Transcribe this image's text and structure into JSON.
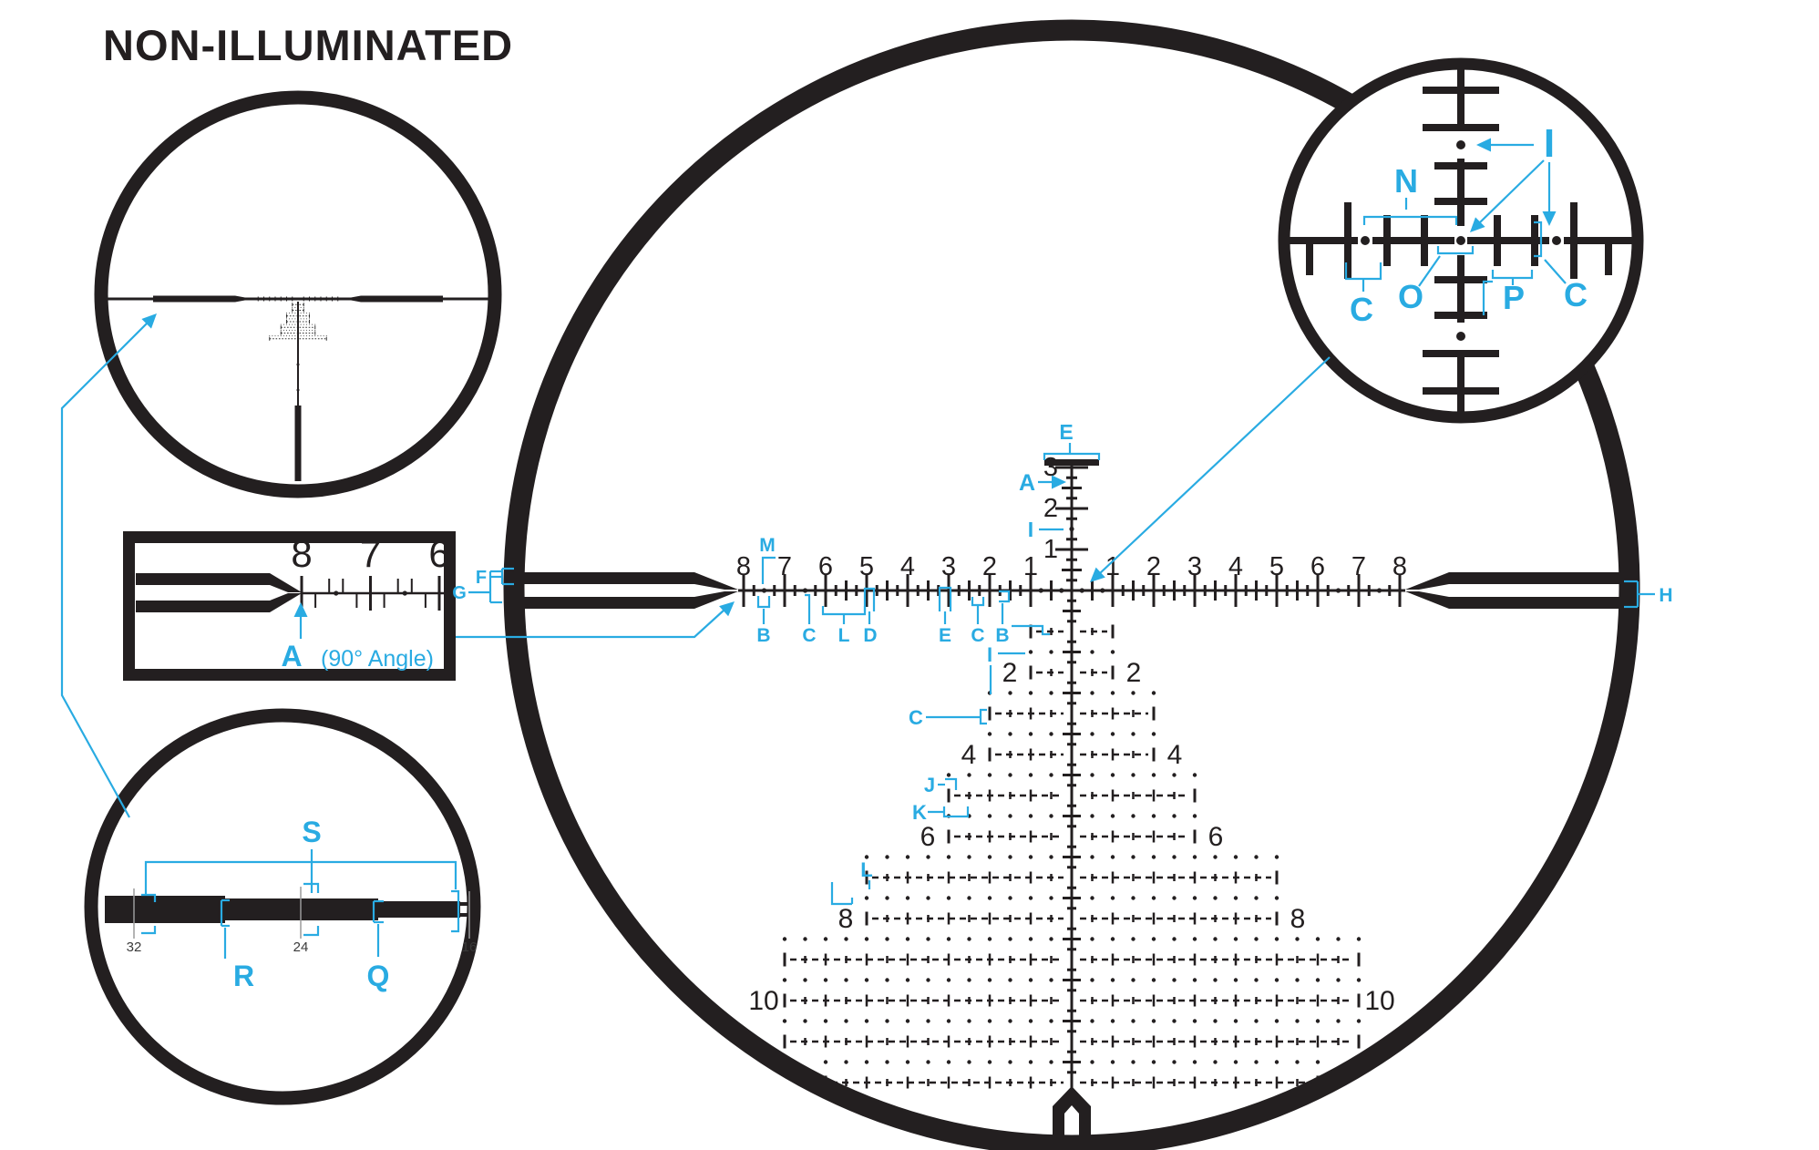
{
  "title": "NON-ILLUMINATED",
  "colors": {
    "ink": "#231F20",
    "accent": "#29ABE2",
    "background": "#FFFFFF",
    "tick_gray": "#9A9A9A"
  },
  "main_reticle": {
    "numbers_left": [
      "8",
      "7",
      "6",
      "5",
      "4",
      "3",
      "2",
      "1"
    ],
    "numbers_right": [
      "1",
      "2",
      "3",
      "4",
      "5",
      "6",
      "7",
      "8"
    ],
    "numbers_vertical": [
      "3",
      "2",
      "1"
    ],
    "tree_numbers_left": [
      "2",
      "4",
      "6",
      "8",
      "10"
    ],
    "tree_numbers_right": [
      "2",
      "4",
      "6",
      "8",
      "10"
    ],
    "callouts": [
      {
        "id": "M_tick",
        "label": "M"
      },
      {
        "id": "B_bar",
        "label": "B"
      },
      {
        "id": "C_bar",
        "label": "C"
      },
      {
        "id": "L_bar",
        "label": "L"
      },
      {
        "id": "D_bar",
        "label": "D"
      },
      {
        "id": "E_bar",
        "label": "E"
      },
      {
        "id": "C_line",
        "label": "C"
      },
      {
        "id": "B_line",
        "label": "B"
      },
      {
        "id": "E_cap",
        "label": "E"
      },
      {
        "id": "A_axis",
        "label": "A"
      },
      {
        "id": "I_axis",
        "label": "I"
      },
      {
        "id": "C_row3",
        "label": "C"
      },
      {
        "id": "I_dots",
        "label": "I"
      },
      {
        "id": "J_dot",
        "label": "J"
      },
      {
        "id": "K_dots",
        "label": "K"
      },
      {
        "id": "L_row7",
        "label": "L"
      },
      {
        "id": "F_inset",
        "label": "F"
      },
      {
        "id": "G_inset",
        "label": "G"
      },
      {
        "id": "H_edge",
        "label": "H"
      }
    ]
  },
  "detail_top_right": {
    "callouts": [
      {
        "id": "I_det",
        "label": "I"
      },
      {
        "id": "N_det",
        "label": "N"
      },
      {
        "id": "C_det_l",
        "label": "C"
      },
      {
        "id": "O_det",
        "label": "O"
      },
      {
        "id": "P_det",
        "label": "P"
      },
      {
        "id": "C_det_r",
        "label": "C"
      }
    ]
  },
  "inset_ruler": {
    "numbers": [
      "8",
      "7",
      "6"
    ],
    "pointer_label": "A",
    "pointer_note": "(90° Angle)"
  },
  "detail_bottom_left": {
    "numbers": [
      "32",
      "24",
      "16"
    ],
    "span_label": "S",
    "step_labels": [
      "R",
      "Q"
    ]
  }
}
